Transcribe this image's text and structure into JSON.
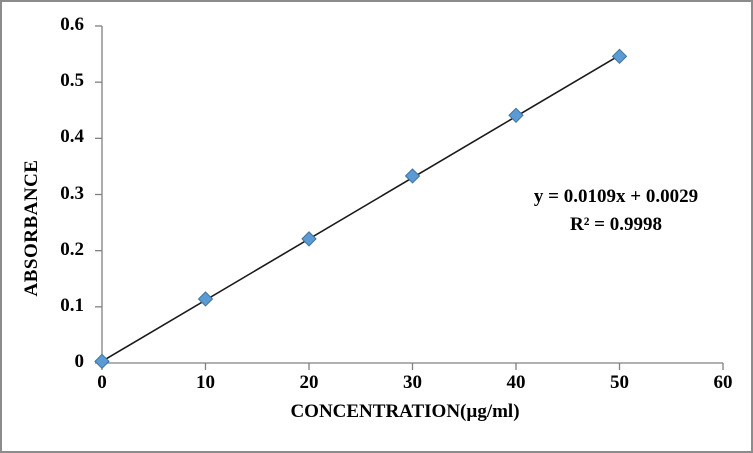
{
  "figure": {
    "background": "#ffffff",
    "border_color": "#8c8c8c",
    "axis_color": "#808080",
    "text_color": "#000000"
  },
  "chart_data": {
    "type": "scatter",
    "title": "",
    "xlabel": "CONCENTRATION(µg/ml)",
    "ylabel": "ABSORBANCE",
    "x": [
      0,
      10,
      20,
      30,
      40,
      50
    ],
    "y": [
      0.003,
      0.114,
      0.221,
      0.333,
      0.441,
      0.546
    ],
    "xlim": [
      0,
      60
    ],
    "ylim": [
      0,
      0.6
    ],
    "x_tick_values": [
      0,
      10,
      20,
      30,
      40,
      50,
      60
    ],
    "x_tick_labels": [
      "0",
      "10",
      "20",
      "30",
      "40",
      "50",
      "60"
    ],
    "y_tick_values": [
      0,
      0.1,
      0.2,
      0.3,
      0.4,
      0.5,
      0.6
    ],
    "y_tick_labels": [
      "0",
      "0.1",
      "0.2",
      "0.3",
      "0.4",
      "0.5",
      "0.6"
    ],
    "grid": false,
    "legend": "none",
    "marker": {
      "shape": "diamond",
      "fill": "#5B9BD5",
      "stroke": "#41719C"
    },
    "trendline": {
      "slope": 0.0109,
      "intercept": 0.0029,
      "x_start": 0,
      "x_end": 50,
      "color": "#1a1a1a"
    },
    "annotation": {
      "equation": "y = 0.0109x + 0.0029",
      "r_squared": "R² = 0.9998"
    }
  }
}
